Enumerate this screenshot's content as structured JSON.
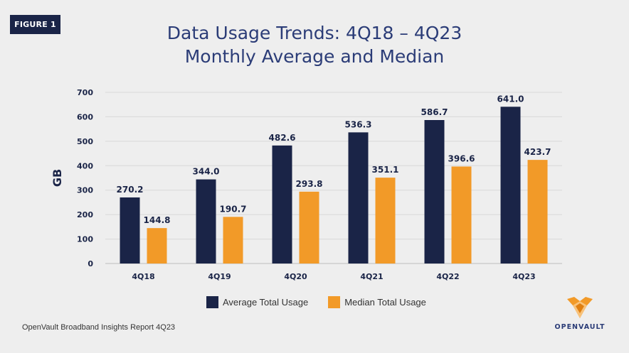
{
  "figure_label": "FIGURE 1",
  "source_note": "OpenVault Broadband Insights Report 4Q23",
  "logo_text": "OPENVAULT",
  "colors": {
    "background": "#eeeeee",
    "average": "#1a2447",
    "median": "#f29a28",
    "title": "#2b3c77",
    "grid": "#d8d8d8"
  },
  "chart_data": {
    "type": "bar",
    "title": "Data Usage Trends: 4Q18 – 4Q23",
    "subtitle": "Monthly Average and Median",
    "ylabel": "GB",
    "xlabel": "",
    "ylim": [
      0,
      700
    ],
    "yticks": [
      0,
      100,
      200,
      300,
      400,
      500,
      600,
      700
    ],
    "grid": true,
    "legend_position": "bottom",
    "categories": [
      "4Q18",
      "4Q19",
      "4Q20",
      "4Q21",
      "4Q22",
      "4Q23"
    ],
    "series": [
      {
        "name": "Average Total Usage",
        "color": "#1a2447",
        "values": [
          270.2,
          344.0,
          482.6,
          536.3,
          586.7,
          641.0
        ],
        "labels": [
          "270.2",
          "344.0",
          "482.6",
          "536.3",
          "586.7",
          "641.0"
        ]
      },
      {
        "name": "Median Total Usage",
        "color": "#f29a28",
        "values": [
          144.8,
          190.7,
          293.8,
          351.1,
          396.6,
          423.7
        ],
        "labels": [
          "144.8",
          "190.7",
          "293.8",
          "351.1",
          "396.6",
          "423.7"
        ]
      }
    ]
  }
}
